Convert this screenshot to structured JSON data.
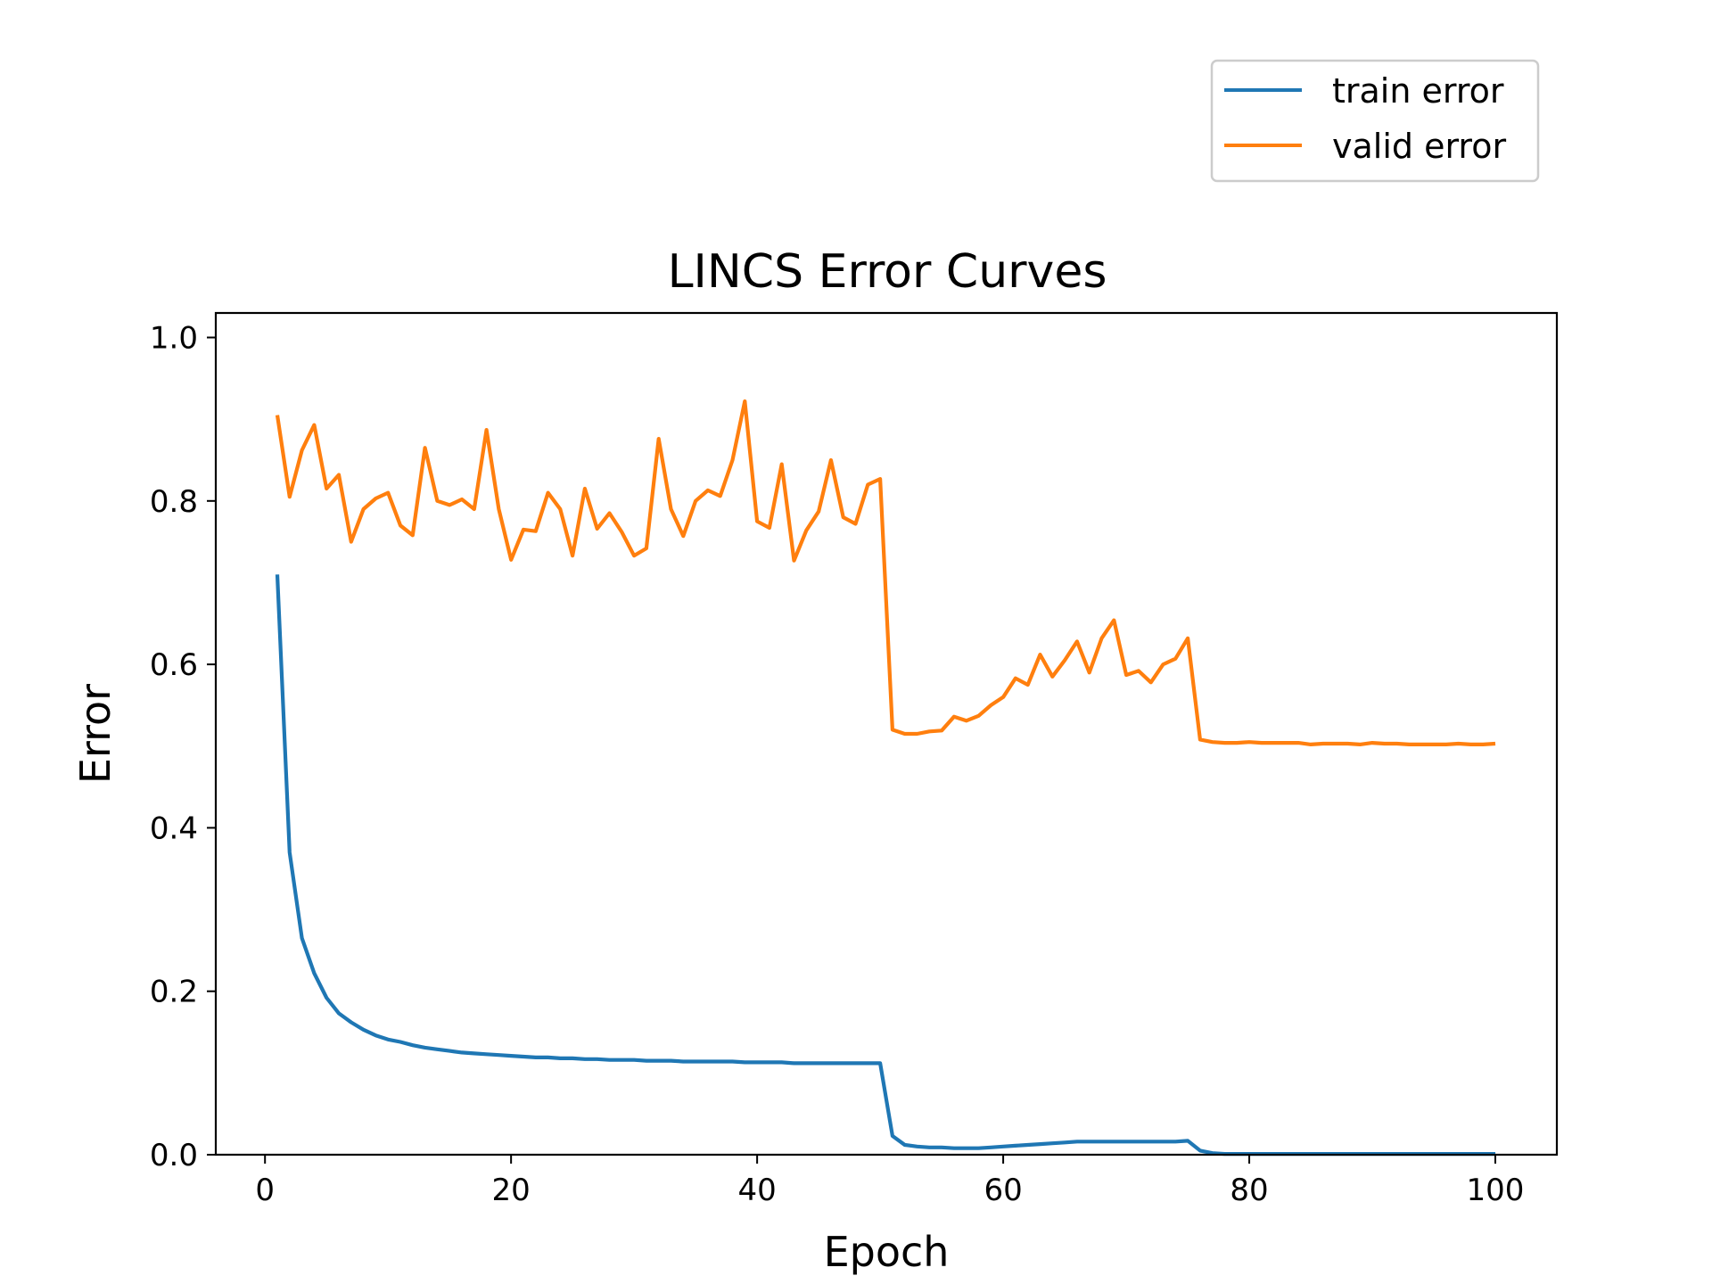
{
  "chart_data": {
    "type": "line",
    "title": "LINCS Error Curves",
    "xlabel": "Epoch",
    "ylabel": "Error",
    "xlim": [
      -4,
      105
    ],
    "ylim": [
      0,
      1.03
    ],
    "xticks": [
      0,
      20,
      40,
      60,
      80,
      100
    ],
    "xtick_labels": [
      "0",
      "20",
      "40",
      "60",
      "80",
      "100"
    ],
    "yticks": [
      0.0,
      0.2,
      0.4,
      0.6,
      0.8,
      1.0
    ],
    "ytick_labels": [
      "0.0",
      "0.2",
      "0.4",
      "0.6",
      "0.8",
      "1.0"
    ],
    "grid": false,
    "legend_position": "top-right, above plot",
    "series": [
      {
        "name": "train error",
        "color": "#1f77b4",
        "x": [
          1,
          2,
          3,
          4,
          5,
          6,
          7,
          8,
          9,
          10,
          11,
          12,
          13,
          14,
          15,
          16,
          17,
          18,
          19,
          20,
          21,
          22,
          23,
          24,
          25,
          26,
          27,
          28,
          29,
          30,
          31,
          32,
          33,
          34,
          35,
          36,
          37,
          38,
          39,
          40,
          41,
          42,
          43,
          44,
          45,
          46,
          47,
          48,
          49,
          50,
          51,
          52,
          53,
          54,
          55,
          56,
          57,
          58,
          59,
          60,
          61,
          62,
          63,
          64,
          65,
          66,
          67,
          68,
          69,
          70,
          71,
          72,
          73,
          74,
          75,
          76,
          77,
          78,
          79,
          80,
          81,
          82,
          83,
          84,
          85,
          86,
          87,
          88,
          89,
          90,
          91,
          92,
          93,
          94,
          95,
          96,
          97,
          98,
          99,
          100
        ],
        "values": [
          0.71,
          0.37,
          0.265,
          0.222,
          0.192,
          0.173,
          0.162,
          0.153,
          0.146,
          0.141,
          0.138,
          0.134,
          0.131,
          0.129,
          0.127,
          0.125,
          0.124,
          0.123,
          0.122,
          0.121,
          0.12,
          0.119,
          0.119,
          0.118,
          0.118,
          0.117,
          0.117,
          0.116,
          0.116,
          0.116,
          0.115,
          0.115,
          0.115,
          0.114,
          0.114,
          0.114,
          0.114,
          0.114,
          0.113,
          0.113,
          0.113,
          0.113,
          0.112,
          0.112,
          0.112,
          0.112,
          0.112,
          0.112,
          0.112,
          0.112,
          0.023,
          0.012,
          0.01,
          0.009,
          0.009,
          0.008,
          0.008,
          0.008,
          0.009,
          0.01,
          0.011,
          0.012,
          0.013,
          0.014,
          0.015,
          0.016,
          0.016,
          0.016,
          0.016,
          0.016,
          0.016,
          0.016,
          0.016,
          0.016,
          0.017,
          0.005,
          0.002,
          0.001,
          0.001,
          0.001,
          0.001,
          0.001,
          0.001,
          0.001,
          0.001,
          0.001,
          0.001,
          0.001,
          0.001,
          0.001,
          0.001,
          0.001,
          0.001,
          0.001,
          0.001,
          0.001,
          0.001,
          0.001,
          0.001,
          0.001
        ]
      },
      {
        "name": "valid error",
        "color": "#ff7f0e",
        "x": [
          1,
          2,
          3,
          4,
          5,
          6,
          7,
          8,
          9,
          10,
          11,
          12,
          13,
          14,
          15,
          16,
          17,
          18,
          19,
          20,
          21,
          22,
          23,
          24,
          25,
          26,
          27,
          28,
          29,
          30,
          31,
          32,
          33,
          34,
          35,
          36,
          37,
          38,
          39,
          40,
          41,
          42,
          43,
          44,
          45,
          46,
          47,
          48,
          49,
          50,
          51,
          52,
          53,
          54,
          55,
          56,
          57,
          58,
          59,
          60,
          61,
          62,
          63,
          64,
          65,
          66,
          67,
          68,
          69,
          70,
          71,
          72,
          73,
          74,
          75,
          76,
          77,
          78,
          79,
          80,
          81,
          82,
          83,
          84,
          85,
          86,
          87,
          88,
          89,
          90,
          91,
          92,
          93,
          94,
          95,
          96,
          97,
          98,
          99,
          100
        ],
        "values": [
          0.905,
          0.805,
          0.862,
          0.893,
          0.815,
          0.832,
          0.75,
          0.79,
          0.803,
          0.81,
          0.77,
          0.758,
          0.865,
          0.8,
          0.795,
          0.802,
          0.79,
          0.887,
          0.79,
          0.728,
          0.765,
          0.763,
          0.81,
          0.79,
          0.733,
          0.815,
          0.766,
          0.785,
          0.762,
          0.733,
          0.742,
          0.876,
          0.79,
          0.757,
          0.8,
          0.813,
          0.806,
          0.85,
          0.922,
          0.775,
          0.767,
          0.845,
          0.727,
          0.764,
          0.787,
          0.85,
          0.78,
          0.772,
          0.82,
          0.827,
          0.52,
          0.515,
          0.515,
          0.518,
          0.519,
          0.536,
          0.531,
          0.537,
          0.55,
          0.56,
          0.583,
          0.575,
          0.612,
          0.585,
          0.605,
          0.628,
          0.59,
          0.632,
          0.654,
          0.587,
          0.592,
          0.578,
          0.6,
          0.607,
          0.632,
          0.508,
          0.505,
          0.504,
          0.504,
          0.505,
          0.504,
          0.504,
          0.504,
          0.504,
          0.502,
          0.503,
          0.503,
          0.503,
          0.502,
          0.504,
          0.503,
          0.503,
          0.502,
          0.502,
          0.502,
          0.502,
          0.503,
          0.502,
          0.502,
          0.503
        ]
      }
    ]
  }
}
